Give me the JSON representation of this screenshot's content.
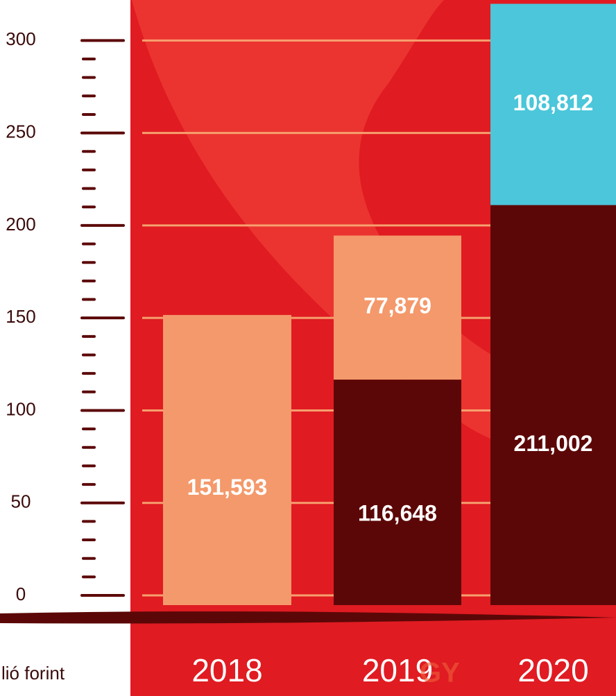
{
  "chart_data": {
    "type": "stacked_bar",
    "x_label": "lió forint",
    "watermark": "GY",
    "categories": [
      "2018",
      "2019",
      "2020"
    ],
    "series": [
      {
        "color": "#5c0707",
        "values": [
          null,
          116.648,
          211.002
        ],
        "value_labels": [
          null,
          "116,648",
          "211,002"
        ]
      },
      {
        "color": "#f4996b",
        "values": [
          151.593,
          77.879,
          null
        ],
        "value_labels": [
          "151,593",
          "77,879",
          null
        ]
      },
      {
        "color": "#4bc6da",
        "values": [
          null,
          null,
          108.812
        ],
        "value_labels": [
          null,
          null,
          "108,812"
        ]
      }
    ],
    "ylim": [
      0,
      320
    ],
    "yticks": [
      0,
      50,
      100,
      150,
      200,
      250,
      300
    ],
    "minor_yticks": [
      10,
      20,
      30,
      40,
      60,
      70,
      80,
      90,
      110,
      120,
      130,
      140,
      160,
      170,
      180,
      190,
      210,
      220,
      230,
      240,
      260,
      270,
      280,
      290
    ],
    "grid": true,
    "grid_color": "#f6a06e",
    "tick_color": "#5c0707"
  }
}
